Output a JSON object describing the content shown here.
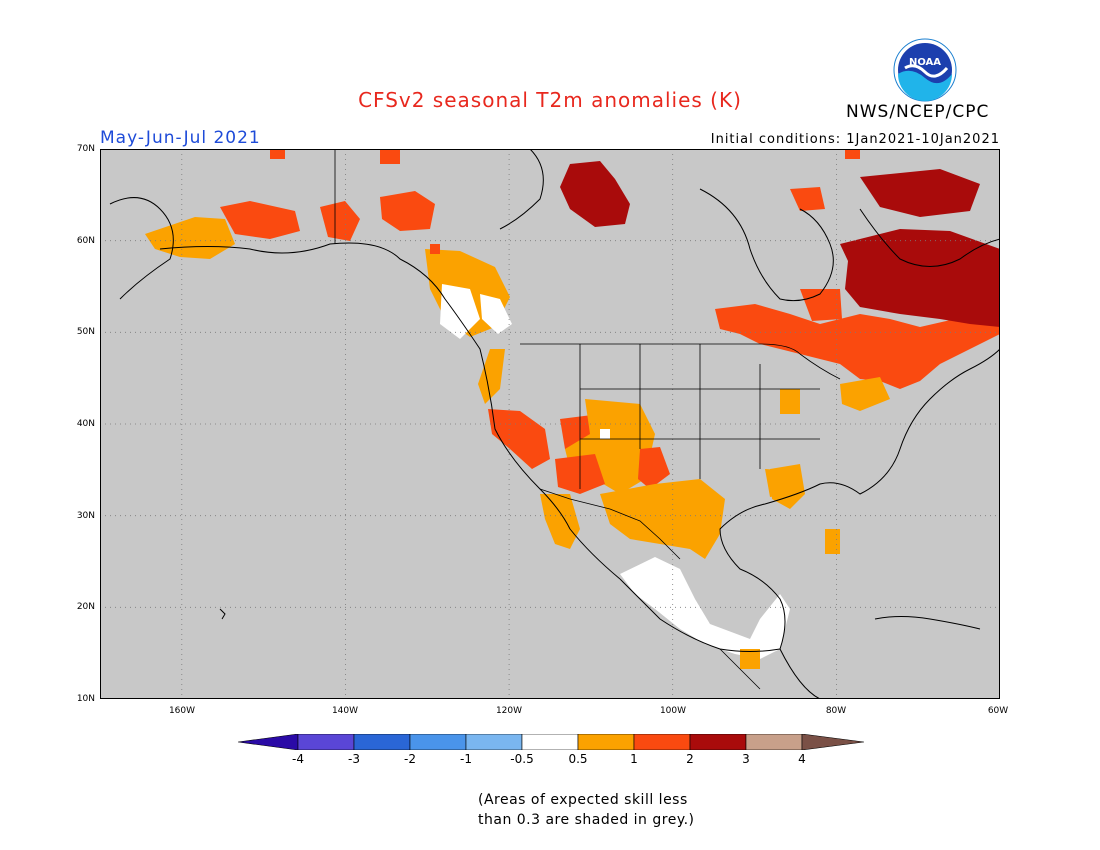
{
  "title": "CFSv2 seasonal T2m anomalies (K)",
  "agency": "NWS/NCEP/CPC",
  "logo_text": "NOAA",
  "period": "May-Jun-Jul 2021",
  "initial_conditions": "Initial conditions:  1Jan2021-10Jan2021",
  "lat_labels": [
    "70N",
    "60N",
    "50N",
    "40N",
    "30N",
    "20N",
    "10N"
  ],
  "lon_labels": [
    "160W",
    "140W",
    "120W",
    "100W",
    "80W",
    "60W"
  ],
  "colorbar": {
    "labels": [
      "-4",
      "-3",
      "-2",
      "-1",
      "-0.5",
      "0.5",
      "1",
      "2",
      "3",
      "4"
    ],
    "colors": [
      "#2a0aa6",
      "#5a46d6",
      "#2a66d6",
      "#4a94ea",
      "#7ab6f0",
      "#ffffff",
      "#fba200",
      "#fa4a10",
      "#a90b0b",
      "#c8a08a",
      "#7a5046"
    ]
  },
  "note_line1": "(Areas of expected skill less",
  "note_line2": "than 0.3 are shaded in grey.)",
  "colors": {
    "no_skill_grey": "#c8c8c8",
    "title_red": "#e8281e",
    "period_blue": "#1e4bd8"
  }
}
